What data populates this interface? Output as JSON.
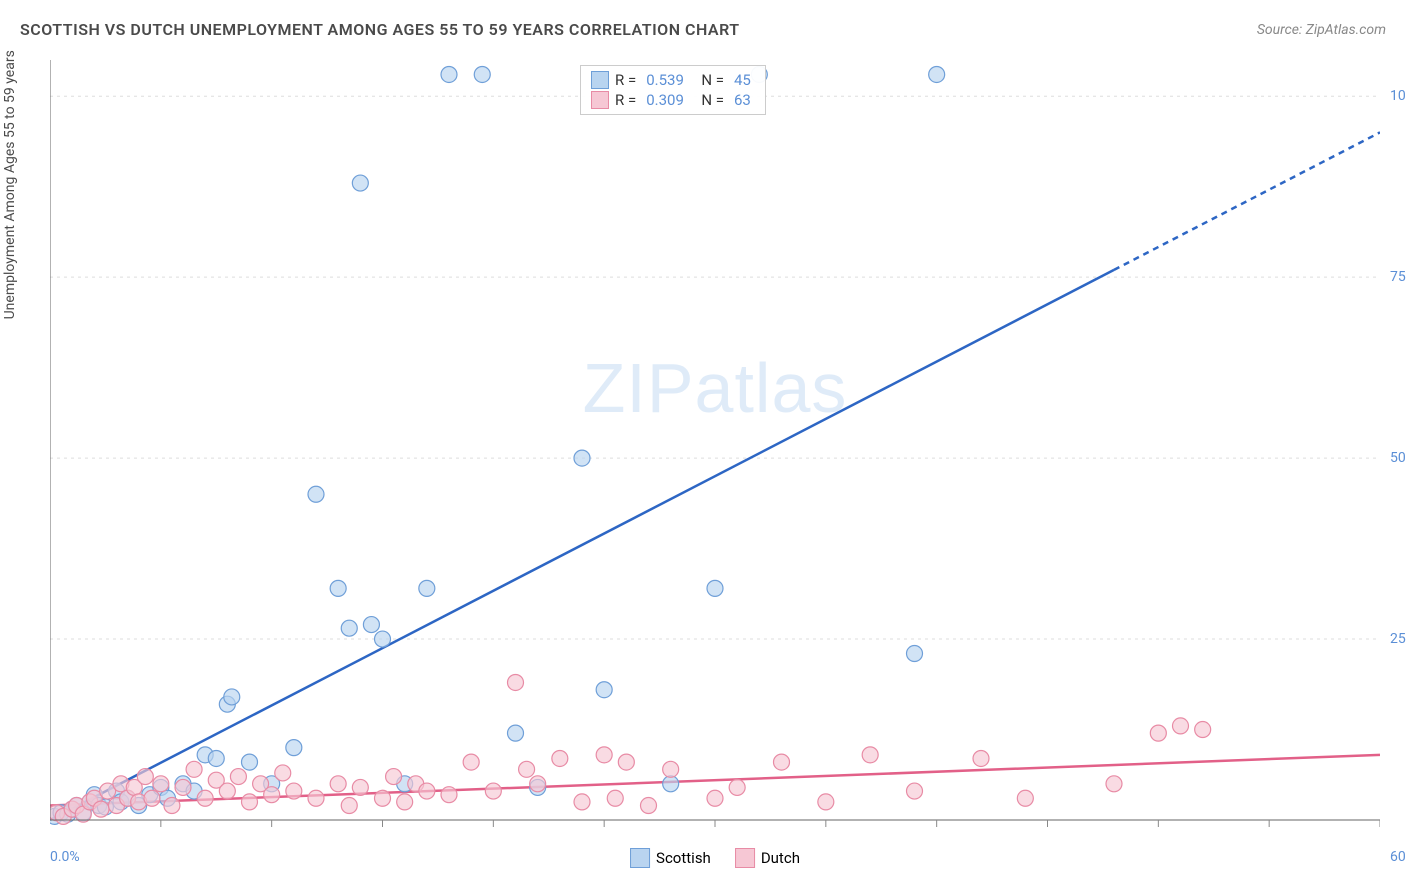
{
  "header": {
    "title": "SCOTTISH VS DUTCH UNEMPLOYMENT AMONG AGES 55 TO 59 YEARS CORRELATION CHART",
    "source": "Source: ZipAtlas.com"
  },
  "ylabel": "Unemployment Among Ages 55 to 59 years",
  "watermark": {
    "zip": "ZIP",
    "atlas": "atlas"
  },
  "chart": {
    "type": "scatter",
    "background_color": "#ffffff",
    "grid_color": "#dddddd",
    "axis_color": "#666666",
    "tick_color": "#888888",
    "xlim": [
      0,
      60
    ],
    "ylim": [
      0,
      105
    ],
    "xtick_step": 5,
    "ytick_step": 25,
    "ytick_labels": [
      "25.0%",
      "50.0%",
      "75.0%",
      "100.0%"
    ],
    "ytick_label_color": "#5b8fd6",
    "xlabel_min": "0.0%",
    "xlabel_max": "60.0%",
    "marker_radius": 8,
    "marker_stroke_width": 1.2,
    "trend_line_width": 2.5,
    "series": [
      {
        "name": "Scottish",
        "fill": "#b9d4f0",
        "stroke": "#6f9fd8",
        "line_color": "#2d66c4",
        "r_value": "0.539",
        "n_value": "45",
        "trend": {
          "x1": 0,
          "y1": 0,
          "x2": 60,
          "y2": 95,
          "dash_from_x": 48
        },
        "points": [
          [
            0.2,
            0.5
          ],
          [
            0.5,
            1
          ],
          [
            0.8,
            0.8
          ],
          [
            1,
            1.5
          ],
          [
            1.2,
            2
          ],
          [
            1.5,
            1
          ],
          [
            1.8,
            2.5
          ],
          [
            2,
            3.5
          ],
          [
            2.2,
            2
          ],
          [
            2.5,
            1.8
          ],
          [
            3,
            4
          ],
          [
            3.2,
            2.5
          ],
          [
            3.5,
            3
          ],
          [
            4,
            2
          ],
          [
            4.5,
            3.5
          ],
          [
            5,
            4.5
          ],
          [
            5.3,
            3
          ],
          [
            6,
            5
          ],
          [
            6.5,
            4
          ],
          [
            7,
            9
          ],
          [
            7.5,
            8.5
          ],
          [
            8,
            16
          ],
          [
            8.2,
            17
          ],
          [
            9,
            8
          ],
          [
            10,
            5
          ],
          [
            11,
            10
          ],
          [
            12,
            45
          ],
          [
            13,
            32
          ],
          [
            13.5,
            26.5
          ],
          [
            14,
            88
          ],
          [
            14.5,
            27
          ],
          [
            15,
            25
          ],
          [
            16,
            5
          ],
          [
            17,
            32
          ],
          [
            18,
            103
          ],
          [
            19.5,
            103
          ],
          [
            21,
            12
          ],
          [
            22,
            4.5
          ],
          [
            24,
            50
          ],
          [
            25,
            18
          ],
          [
            28,
            5
          ],
          [
            30,
            32
          ],
          [
            32,
            103
          ],
          [
            39,
            23
          ],
          [
            40,
            103
          ]
        ]
      },
      {
        "name": "Dutch",
        "fill": "#f6c7d4",
        "stroke": "#e88ba5",
        "line_color": "#e26088",
        "r_value": "0.309",
        "n_value": "63",
        "trend": {
          "x1": 0,
          "y1": 2,
          "x2": 60,
          "y2": 9
        },
        "points": [
          [
            0.3,
            1
          ],
          [
            0.6,
            0.5
          ],
          [
            1,
            1.5
          ],
          [
            1.2,
            2
          ],
          [
            1.5,
            0.8
          ],
          [
            1.8,
            2.5
          ],
          [
            2,
            3
          ],
          [
            2.3,
            1.5
          ],
          [
            2.6,
            4
          ],
          [
            3,
            2
          ],
          [
            3.2,
            5
          ],
          [
            3.5,
            3
          ],
          [
            3.8,
            4.5
          ],
          [
            4,
            2.5
          ],
          [
            4.3,
            6
          ],
          [
            4.6,
            3
          ],
          [
            5,
            5
          ],
          [
            5.5,
            2
          ],
          [
            6,
            4.5
          ],
          [
            6.5,
            7
          ],
          [
            7,
            3
          ],
          [
            7.5,
            5.5
          ],
          [
            8,
            4
          ],
          [
            8.5,
            6
          ],
          [
            9,
            2.5
          ],
          [
            9.5,
            5
          ],
          [
            10,
            3.5
          ],
          [
            10.5,
            6.5
          ],
          [
            11,
            4
          ],
          [
            12,
            3
          ],
          [
            13,
            5
          ],
          [
            13.5,
            2
          ],
          [
            14,
            4.5
          ],
          [
            15,
            3
          ],
          [
            15.5,
            6
          ],
          [
            16,
            2.5
          ],
          [
            16.5,
            5
          ],
          [
            17,
            4
          ],
          [
            18,
            3.5
          ],
          [
            19,
            8
          ],
          [
            20,
            4
          ],
          [
            21,
            19
          ],
          [
            21.5,
            7
          ],
          [
            22,
            5
          ],
          [
            23,
            8.5
          ],
          [
            24,
            2.5
          ],
          [
            25,
            9
          ],
          [
            25.5,
            3
          ],
          [
            26,
            8
          ],
          [
            27,
            2
          ],
          [
            28,
            7
          ],
          [
            30,
            3
          ],
          [
            31,
            4.5
          ],
          [
            33,
            8
          ],
          [
            35,
            2.5
          ],
          [
            37,
            9
          ],
          [
            39,
            4
          ],
          [
            42,
            8.5
          ],
          [
            44,
            3
          ],
          [
            48,
            5
          ],
          [
            50,
            12
          ],
          [
            51,
            13
          ],
          [
            52,
            12.5
          ]
        ]
      }
    ]
  },
  "bottom_legend": [
    {
      "label": "Scottish",
      "fill": "#b9d4f0",
      "stroke": "#6f9fd8"
    },
    {
      "label": "Dutch",
      "fill": "#f6c7d4",
      "stroke": "#e88ba5"
    }
  ]
}
